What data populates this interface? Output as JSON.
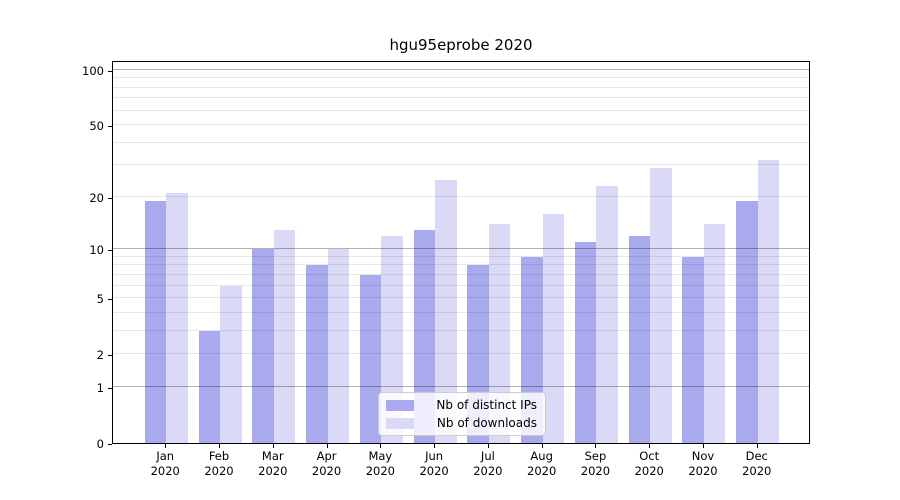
{
  "title": "hgu95eprobe 2020",
  "colors": {
    "ips_bar": "#a9a9ee",
    "downloads_bar": "#dadaf6",
    "grid_minor": "rgba(0,0,0,0.09)",
    "grid_major": "rgba(0,0,0,0.30)",
    "axis": "#000000",
    "legend_border": "#cccccc",
    "background": "#ffffff"
  },
  "chart_data": {
    "type": "bar",
    "title": "hgu95eprobe 2020",
    "categories": [
      "Jan",
      "Feb",
      "Mar",
      "Apr",
      "May",
      "Jun",
      "Jul",
      "Aug",
      "Sep",
      "Oct",
      "Nov",
      "Dec"
    ],
    "year": "2020",
    "series": [
      {
        "name": "Nb of distinct IPs",
        "color": "#a9a9ee",
        "values": [
          19,
          3,
          10,
          8,
          7,
          13,
          8,
          9,
          11,
          12,
          9,
          19
        ]
      },
      {
        "name": "Nb of downloads",
        "color": "#dadaf6",
        "values": [
          21,
          6,
          13,
          10,
          12,
          25,
          14,
          16,
          23,
          29,
          14,
          32
        ]
      }
    ],
    "xlabel": "",
    "ylabel": "",
    "scale": "log10(1+x)",
    "ylim": [
      0,
      113.3
    ],
    "yticks": [
      0,
      1,
      2,
      5,
      10,
      20,
      50,
      100
    ],
    "grid_minor_values": [
      2,
      3,
      4,
      5,
      6,
      7,
      8,
      9,
      20,
      30,
      40,
      50,
      60,
      70,
      80,
      90
    ],
    "grid_major_values": [
      1,
      10,
      100
    ],
    "grid": "on",
    "legend_position": "lower center"
  }
}
